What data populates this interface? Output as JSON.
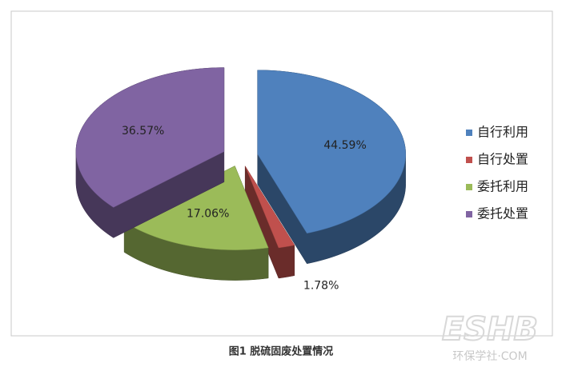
{
  "chart_data": {
    "type": "pie3d",
    "caption": "图1  脱硫固废处置情况",
    "categories": [
      "自行利用",
      "自行处置",
      "委托利用",
      "委托处置"
    ],
    "values": [
      44.59,
      1.78,
      17.06,
      36.57
    ],
    "value_labels": [
      "44.59%",
      "1.78%",
      "17.06%",
      "36.57%"
    ],
    "colors": [
      "#4f81bd",
      "#c0504d",
      "#9bbb59",
      "#8064a2"
    ],
    "legend": "right"
  },
  "watermark": {
    "logo": "ESHB",
    "text": "环保学社·COM"
  }
}
